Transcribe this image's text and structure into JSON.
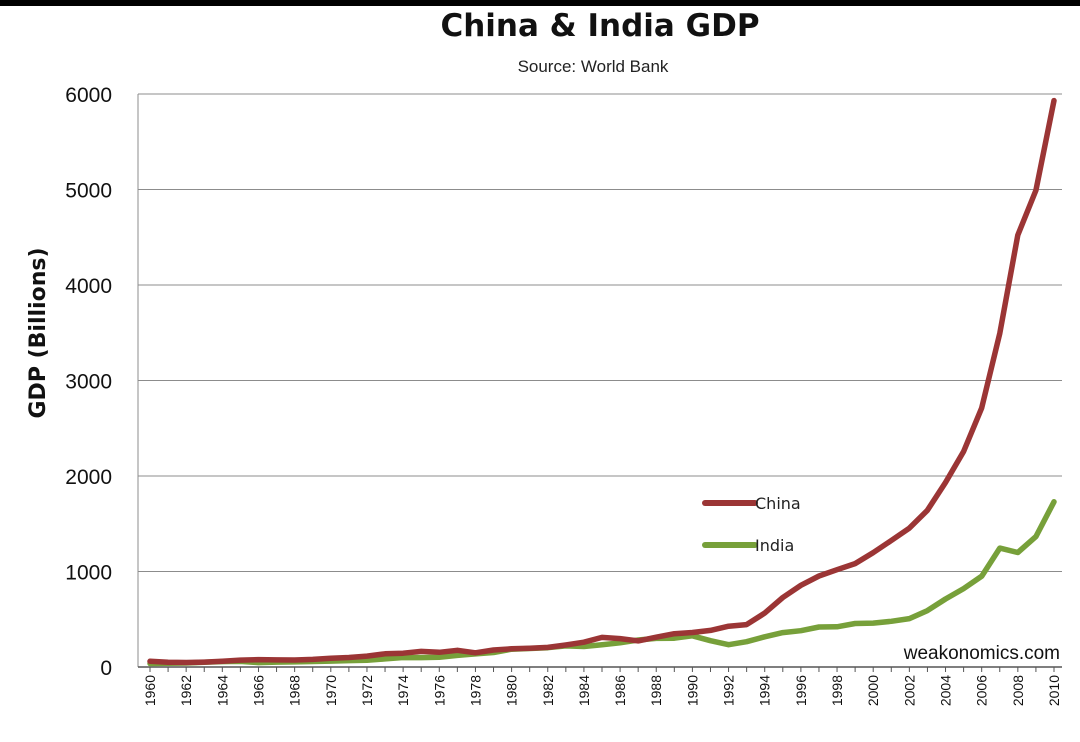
{
  "chart_data": {
    "type": "line",
    "title": "China & India GDP",
    "subtitle": "Source: World Bank",
    "ylabel": "GDP (Billions)",
    "xlabel": "",
    "ylim": [
      0,
      6000
    ],
    "yticks": [
      "0",
      "1000",
      "2000",
      "3000",
      "4000",
      "5000",
      "6000"
    ],
    "x": [
      1960,
      1961,
      1962,
      1963,
      1964,
      1965,
      1966,
      1967,
      1968,
      1969,
      1970,
      1971,
      1972,
      1973,
      1974,
      1975,
      1976,
      1977,
      1978,
      1979,
      1980,
      1981,
      1982,
      1983,
      1984,
      1985,
      1986,
      1987,
      1988,
      1989,
      1990,
      1991,
      1992,
      1993,
      1994,
      1995,
      1996,
      1997,
      1998,
      1999,
      2000,
      2001,
      2002,
      2003,
      2004,
      2005,
      2006,
      2007,
      2008,
      2009,
      2010
    ],
    "xtick_labels": [
      "1960",
      "1962",
      "1964",
      "1966",
      "1968",
      "1970",
      "1972",
      "1974",
      "1976",
      "1978",
      "1980",
      "1982",
      "1984",
      "1986",
      "1988",
      "1990",
      "1992",
      "1994",
      "1996",
      "1998",
      "2000",
      "2002",
      "2004",
      "2006",
      "2008",
      "2010"
    ],
    "grid": true,
    "legend_position": "center-right",
    "series": [
      {
        "name": "China",
        "color": "#9b3535",
        "values": [
          60,
          50,
          47,
          51,
          60,
          72,
          78,
          74,
          73,
          80,
          92,
          99,
          114,
          138,
          144,
          163,
          154,
          175,
          149,
          178,
          191,
          196,
          205,
          230,
          260,
          310,
          297,
          273,
          312,
          349,
          361,
          383,
          427,
          444,
          564,
          728,
          856,
          953,
          1019,
          1083,
          1198,
          1325,
          1454,
          1641,
          1932,
          2257,
          2713,
          3494,
          4522,
          4991,
          5931
        ]
      },
      {
        "name": "India",
        "color": "#77a03a",
        "values": [
          37,
          39,
          42,
          49,
          57,
          59,
          46,
          51,
          53,
          58,
          62,
          67,
          71,
          85,
          99,
          98,
          102,
          121,
          137,
          152,
          186,
          194,
          202,
          221,
          215,
          232,
          253,
          283,
          300,
          302,
          327,
          275,
          233,
          265,
          316,
          360,
          380,
          419,
          421,
          456,
          460,
          479,
          507,
          591,
          712,
          821,
          951,
          1245,
          1199,
          1365,
          1730
        ]
      }
    ],
    "annotation": "weakonomics.com"
  }
}
